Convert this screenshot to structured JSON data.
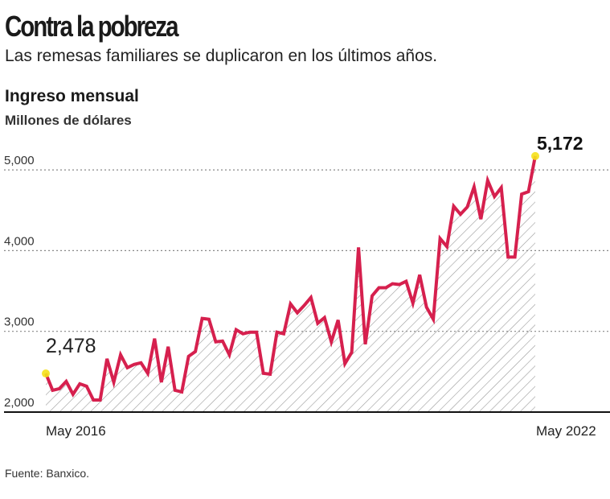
{
  "header": {
    "title": "Contra la pobreza",
    "subtitle": "Las remesas familiares se duplicaron en los últimos años."
  },
  "footer": {
    "source": "Fuente: Banxico."
  },
  "chart_data": {
    "type": "area",
    "title": "Ingreso mensual",
    "ylabel": "Millones de dólares",
    "xlabel": "",
    "x_tick_labels": [
      "May 2016",
      "May 2022"
    ],
    "y_ticks": [
      2000,
      3000,
      4000,
      5000
    ],
    "y_tick_labels": [
      "2,000",
      "3,000",
      "4,000",
      "5,000"
    ],
    "ylim": [
      2000,
      5300
    ],
    "grid": true,
    "annotations": [
      {
        "point": "first",
        "label": "2,478"
      },
      {
        "point": "last",
        "label": "5,172"
      }
    ],
    "line_color": "#d6204e",
    "marker_color": "#f5e11a",
    "values": [
      2478,
      2270,
      2290,
      2380,
      2220,
      2350,
      2320,
      2150,
      2150,
      2660,
      2370,
      2710,
      2550,
      2590,
      2610,
      2480,
      2910,
      2370,
      2810,
      2270,
      2250,
      2690,
      2750,
      3160,
      3150,
      2870,
      2880,
      2710,
      3020,
      2970,
      2990,
      2990,
      2480,
      2470,
      2990,
      2970,
      3340,
      3230,
      3320,
      3420,
      3100,
      3170,
      2870,
      3140,
      2600,
      2740,
      4040,
      2840,
      3440,
      3540,
      3540,
      3590,
      3580,
      3620,
      3350,
      3700,
      3300,
      3150,
      4150,
      4050,
      4550,
      4450,
      4540,
      4790,
      4390,
      4870,
      4670,
      4780,
      3920,
      3920,
      4700,
      4730,
      5172
    ]
  }
}
